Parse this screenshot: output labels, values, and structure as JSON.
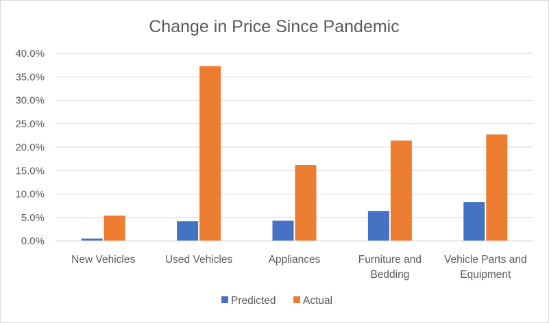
{
  "chart_data": {
    "type": "bar",
    "title": "Change in Price Since Pandemic",
    "categories": [
      "New Vehicles",
      "Used Vehicles",
      "Appliances",
      "Furniture and Bedding",
      "Vehicle Parts and Equipment"
    ],
    "category_label_lines": [
      [
        "New Vehicles"
      ],
      [
        "Used Vehicles"
      ],
      [
        "Appliances"
      ],
      [
        "Furniture and",
        "Bedding"
      ],
      [
        "Vehicle Parts and",
        "Equipment"
      ]
    ],
    "series": [
      {
        "name": "Predicted",
        "color": "#4472C4",
        "values": [
          0.5,
          4.2,
          4.3,
          6.4,
          8.3
        ]
      },
      {
        "name": "Actual",
        "color": "#ED7D31",
        "values": [
          5.4,
          37.3,
          16.2,
          21.4,
          22.7
        ]
      }
    ],
    "yticks": [
      "0.0%",
      "5.0%",
      "10.0%",
      "15.0%",
      "20.0%",
      "25.0%",
      "30.0%",
      "35.0%",
      "40.0%"
    ],
    "ylim": [
      0,
      40
    ],
    "grid": true,
    "legend_position": "bottom",
    "xlabel": "",
    "ylabel": ""
  }
}
